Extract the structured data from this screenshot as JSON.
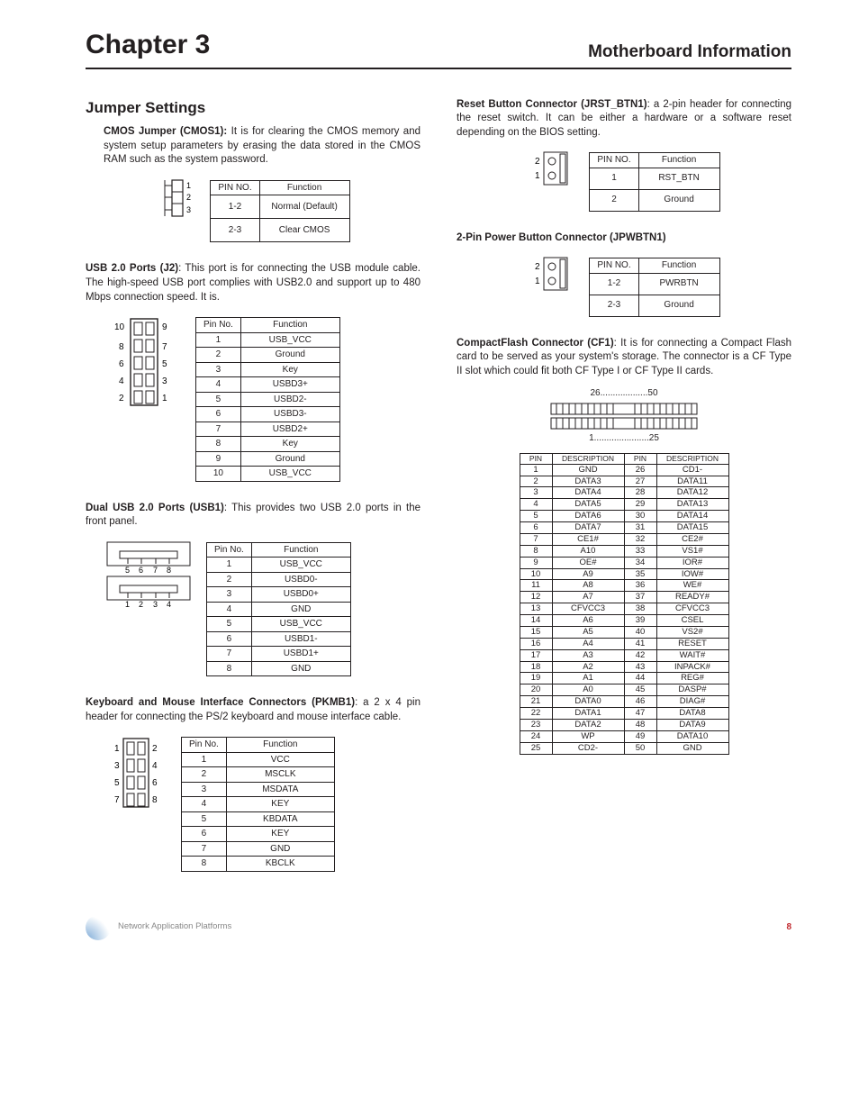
{
  "header": {
    "chapter": "Chapter 3",
    "subtitle": "Motherboard Information"
  },
  "section_title": "Jumper Settings",
  "cmos": {
    "title": "CMOS Jumper (CMOS1):",
    "body": " It is for clearing the CMOS memory and system setup parameters by erasing the data stored in the CMOS RAM such as the system password.",
    "head": [
      "PIN NO.",
      "Function"
    ],
    "rows": [
      [
        "1-2",
        "Normal (Default)"
      ],
      [
        "2-3",
        "Clear CMOS"
      ]
    ]
  },
  "usb_j2": {
    "title": "USB 2.0 Ports (J2)",
    "body": ":  This port is for connecting the USB module cable. The high-speed USB port complies with USB2.0 and support up to 480 Mbps connection speed. It is.",
    "head": [
      "Pin No.",
      "Function"
    ],
    "rows": [
      [
        "1",
        "USB_VCC"
      ],
      [
        "2",
        "Ground"
      ],
      [
        "3",
        "Key"
      ],
      [
        "4",
        "USBD3+"
      ],
      [
        "5",
        "USBD2-"
      ],
      [
        "6",
        "USBD3-"
      ],
      [
        "7",
        "USBD2+"
      ],
      [
        "8",
        "Key"
      ],
      [
        "9",
        "Ground"
      ],
      [
        "10",
        "USB_VCC"
      ]
    ]
  },
  "usb1": {
    "title": "Dual USB 2.0 Ports (USB1)",
    "body": ": This provides two USB 2.0 ports in the front panel.",
    "head": [
      "Pin No.",
      "Function"
    ],
    "rows": [
      [
        "1",
        "USB_VCC"
      ],
      [
        "2",
        "USBD0-"
      ],
      [
        "3",
        "USBD0+"
      ],
      [
        "4",
        "GND"
      ],
      [
        "5",
        "USB_VCC"
      ],
      [
        "6",
        "USBD1-"
      ],
      [
        "7",
        "USBD1+"
      ],
      [
        "8",
        "GND"
      ]
    ]
  },
  "pkmb1": {
    "title": "Keyboard and Mouse Interface Connectors (PKMB1)",
    "body": ": a 2 x 4 pin header for connecting the PS/2 keyboard and mouse interface cable.",
    "head": [
      "Pin No.",
      "Function"
    ],
    "rows": [
      [
        "1",
        "VCC"
      ],
      [
        "2",
        "MSCLK"
      ],
      [
        "3",
        "MSDATA"
      ],
      [
        "4",
        "KEY"
      ],
      [
        "5",
        "KBDATA"
      ],
      [
        "6",
        "KEY"
      ],
      [
        "7",
        "GND"
      ],
      [
        "8",
        "KBCLK"
      ]
    ]
  },
  "reset": {
    "title": "Reset Button Connector (JRST_BTN1)",
    "body": ": a 2-pin header for connecting the reset switch. It can be either a hardware or a software reset depending on the BIOS setting.",
    "head": [
      "PIN NO.",
      "Function"
    ],
    "rows": [
      [
        "1",
        "RST_BTN"
      ],
      [
        "2",
        "Ground"
      ]
    ]
  },
  "pwr": {
    "title": "2-Pin Power Button Connector (JPWBTN1)",
    "head": [
      "PIN NO.",
      "Function"
    ],
    "rows": [
      [
        "1-2",
        "PWRBTN"
      ],
      [
        "2-3",
        "Ground"
      ]
    ]
  },
  "cf": {
    "title": "CompactFlash Connector (CF1)",
    "body": ": It is for connecting a Compact Flash card to be served as your system's storage.  The connector is a CF Type II slot which could fit both  CF Type I or CF Type II cards.",
    "label_top": "26...................50",
    "label_bottom": "1......................25",
    "head": [
      "PIN",
      "DESCRIPTION",
      "PIN",
      "DESCRIPTION"
    ],
    "rows": [
      [
        "1",
        "GND",
        "26",
        "CD1-"
      ],
      [
        "2",
        "DATA3",
        "27",
        "DATA11"
      ],
      [
        "3",
        "DATA4",
        "28",
        "DATA12"
      ],
      [
        "4",
        "DATA5",
        "29",
        "DATA13"
      ],
      [
        "5",
        "DATA6",
        "30",
        "DATA14"
      ],
      [
        "6",
        "DATA7",
        "31",
        "DATA15"
      ],
      [
        "7",
        "CE1#",
        "32",
        "CE2#"
      ],
      [
        "8",
        "A10",
        "33",
        "VS1#"
      ],
      [
        "9",
        "OE#",
        "34",
        "IOR#"
      ],
      [
        "10",
        "A9",
        "35",
        "IOW#"
      ],
      [
        "11",
        "A8",
        "36",
        "WE#"
      ],
      [
        "12",
        "A7",
        "37",
        "READY#"
      ],
      [
        "13",
        "CFVCC3",
        "38",
        "CFVCC3"
      ],
      [
        "14",
        "A6",
        "39",
        "CSEL"
      ],
      [
        "15",
        "A5",
        "40",
        "VS2#"
      ],
      [
        "16",
        "A4",
        "41",
        "RESET"
      ],
      [
        "17",
        "A3",
        "42",
        "WAIT#"
      ],
      [
        "18",
        "A2",
        "43",
        "INPACK#"
      ],
      [
        "19",
        "A1",
        "44",
        "REG#"
      ],
      [
        "20",
        "A0",
        "45",
        "DASP#"
      ],
      [
        "21",
        "DATA0",
        "46",
        "DIAG#"
      ],
      [
        "22",
        "DATA1",
        "47",
        "DATA8"
      ],
      [
        "23",
        "DATA2",
        "48",
        "DATA9"
      ],
      [
        "24",
        "WP",
        "49",
        "DATA10"
      ],
      [
        "25",
        "CD2-",
        "50",
        "GND"
      ]
    ]
  },
  "footer": {
    "text": "Network Application Platforms",
    "page": "8"
  }
}
